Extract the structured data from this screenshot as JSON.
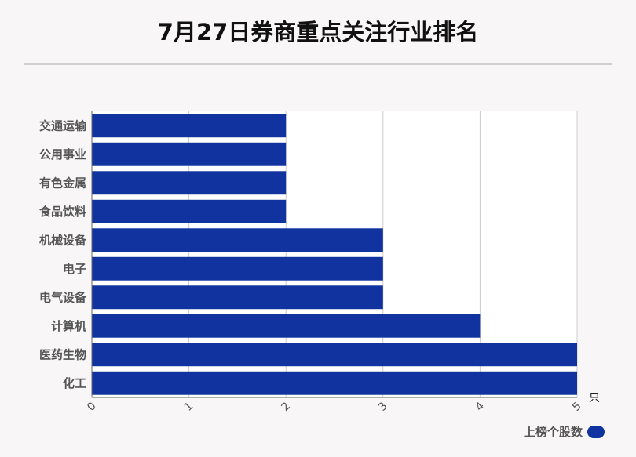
{
  "title": "7月27日券商重点关注行业排名",
  "chart_data": {
    "type": "bar",
    "orientation": "horizontal",
    "categories": [
      "交通运输",
      "公用事业",
      "有色金属",
      "食品饮料",
      "机械设备",
      "电子",
      "电气设备",
      "计算机",
      "医药生物",
      "化工"
    ],
    "series": [
      {
        "name": "上榜个股数",
        "values": [
          2,
          2,
          2,
          2,
          3,
          3,
          3,
          4,
          5,
          5
        ]
      }
    ],
    "xlim": [
      0,
      5
    ],
    "xticks": [
      "0",
      "1",
      "2",
      "3",
      "4",
      "5"
    ],
    "xunit": "只",
    "grid": true,
    "legend_position": "bottom-right",
    "bar_color": "#1033a0"
  }
}
